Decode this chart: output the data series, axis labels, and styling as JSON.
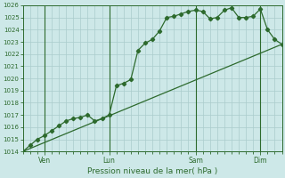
{
  "title": "",
  "xlabel": "Pression niveau de la mer( hPa )",
  "ylabel": "",
  "background_color": "#cde8e8",
  "grid_color": "#aacccc",
  "line_color": "#2d6a2d",
  "ylim": [
    1014,
    1026
  ],
  "xlim": [
    0,
    36
  ],
  "x_ticks_labels": [
    "Ven",
    "Lun",
    "Sam",
    "Dim"
  ],
  "x_ticks_pos": [
    3,
    12,
    24,
    33
  ],
  "series1_x": [
    0,
    1,
    2,
    3,
    4,
    5,
    6,
    7,
    8,
    9,
    10,
    11,
    12,
    13,
    14,
    15,
    16,
    17,
    18,
    19,
    20,
    21,
    22,
    23,
    24,
    25,
    26,
    27,
    28,
    29,
    30,
    31,
    32,
    33,
    34,
    35,
    36
  ],
  "series1_y": [
    1014.0,
    1014.5,
    1015.0,
    1015.3,
    1015.7,
    1016.1,
    1016.5,
    1016.7,
    1016.8,
    1017.0,
    1016.5,
    1016.7,
    1017.0,
    1019.4,
    1019.6,
    1019.9,
    1022.3,
    1022.9,
    1023.2,
    1023.9,
    1025.0,
    1025.1,
    1025.3,
    1025.5,
    1025.6,
    1025.5,
    1024.9,
    1025.0,
    1025.6,
    1025.8,
    1025.0,
    1025.0,
    1025.1,
    1025.7,
    1024.0,
    1023.2,
    1022.8
  ],
  "series2_x": [
    0,
    36
  ],
  "series2_y": [
    1014.0,
    1022.8
  ],
  "font_color": "#2d6a2d",
  "tick_fontsize": 5.0,
  "xlabel_fontsize": 6.5
}
